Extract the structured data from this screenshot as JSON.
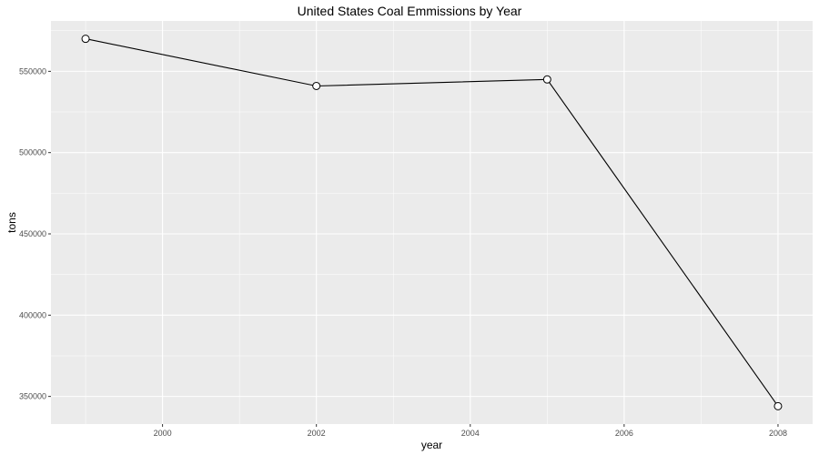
{
  "chart_data": {
    "type": "line",
    "title": "United States Coal Emmissions by Year",
    "xlabel": "year",
    "ylabel": "tons",
    "x": [
      1999,
      2002,
      2005,
      2008
    ],
    "series": [
      {
        "values": [
          570000,
          541000,
          545000,
          344000
        ]
      }
    ],
    "xlim": [
      1998.55,
      2008.45
    ],
    "ylim": [
      333000,
      581000
    ],
    "xticks": [
      2000,
      2002,
      2004,
      2006,
      2008
    ],
    "yticks": [
      350000,
      400000,
      450000,
      500000,
      550000
    ],
    "xtick_labels": [
      "2000",
      "2002",
      "2004",
      "2006",
      "2008"
    ],
    "ytick_labels": [
      "350000",
      "400000",
      "450000",
      "500000",
      "550000"
    ],
    "grid": true,
    "colors": {
      "panel": "#ebebeb",
      "grid": "#ffffff",
      "line": "#000000",
      "marker_fill": "#ffffff",
      "marker_stroke": "#000000"
    }
  }
}
